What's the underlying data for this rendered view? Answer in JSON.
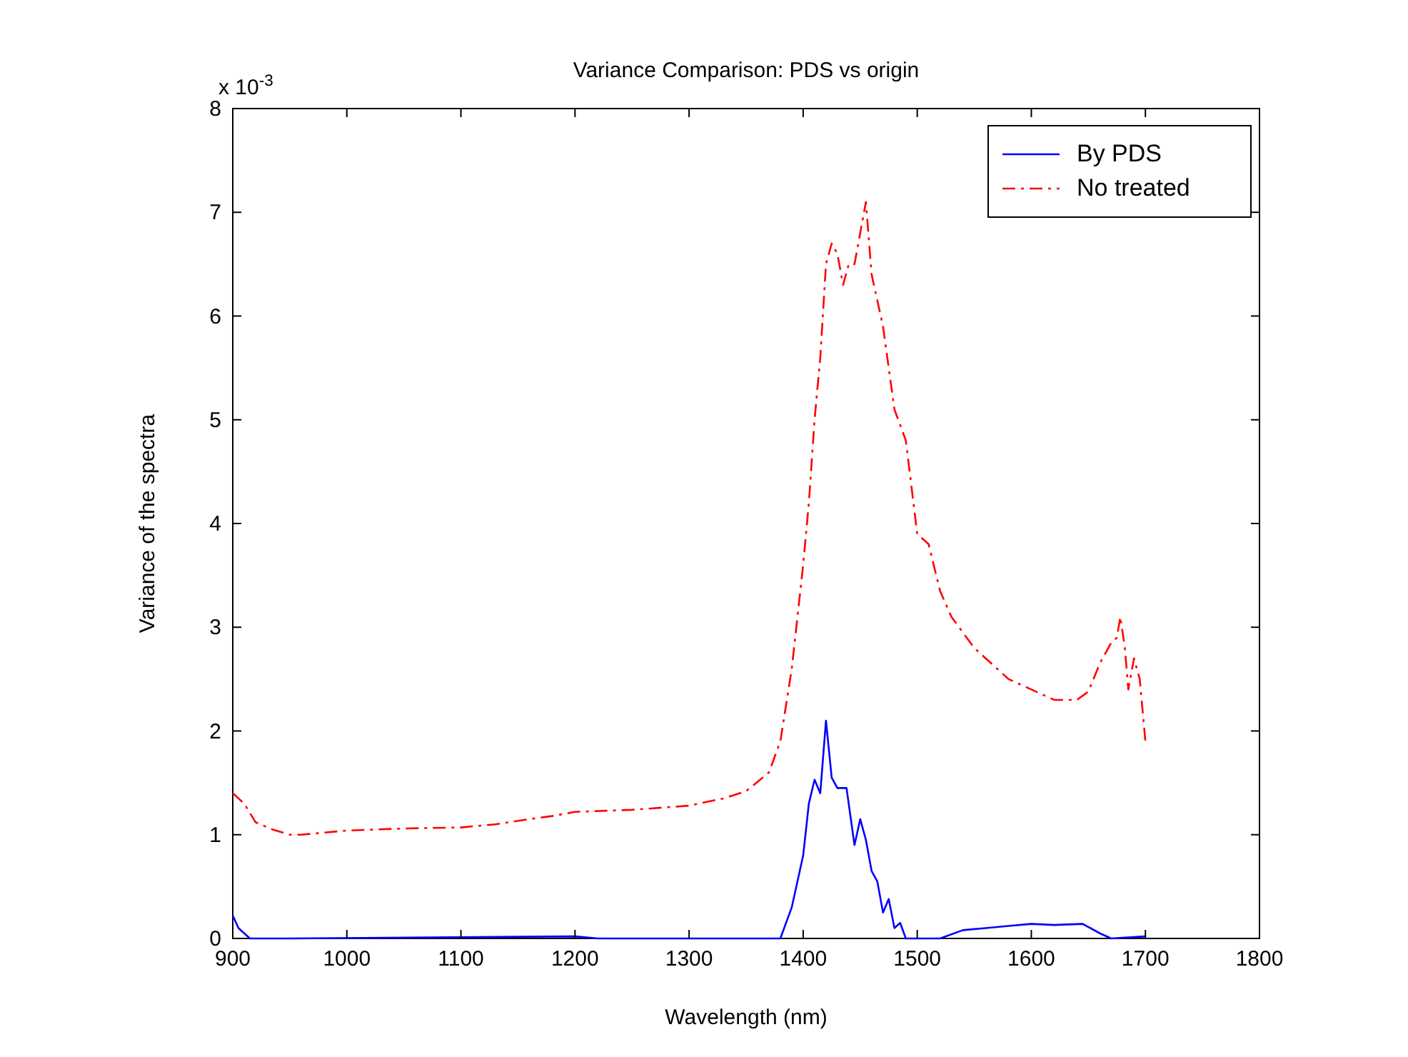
{
  "chart_data": {
    "type": "line",
    "title": "Variance Comparison: PDS vs origin",
    "xlabel": "Wavelength (nm)",
    "ylabel": "Variance of the spectra",
    "annotations": [
      "x 10$^{-3}$"
    ],
    "xlim": [
      900,
      1800
    ],
    "xticks": [
      900,
      1000,
      1100,
      1200,
      1300,
      1400,
      1500,
      1600,
      1700,
      1800
    ],
    "ylim": [
      0,
      8
    ],
    "yticks": [
      0,
      1,
      2,
      3,
      4,
      5,
      6,
      7,
      8
    ],
    "grid": false,
    "legend": "top right",
    "series": [
      {
        "name": "By PDS",
        "color": "#0000ff",
        "line_style": "solid",
        "x": [
          900,
          905,
          915,
          950,
          1200,
          1220,
          1370,
          1380,
          1390,
          1400,
          1405,
          1410,
          1415,
          1420,
          1425,
          1430,
          1438,
          1445,
          1450,
          1455,
          1460,
          1465,
          1470,
          1475,
          1480,
          1485,
          1490,
          1500,
          1520,
          1540,
          1560,
          1580,
          1600,
          1620,
          1645,
          1660,
          1670,
          1700
        ],
        "values": [
          0.22,
          0.1,
          0,
          0,
          0.02,
          0,
          0,
          0,
          0.3,
          0.8,
          1.3,
          1.53,
          1.4,
          2.1,
          1.55,
          1.45,
          1.45,
          0.9,
          1.15,
          0.95,
          0.65,
          0.55,
          0.25,
          0.38,
          0.1,
          0.15,
          0,
          0,
          0,
          0.08,
          0.1,
          0.12,
          0.14,
          0.13,
          0.14,
          0.05,
          0,
          0.02
        ]
      },
      {
        "name": "No treated",
        "color": "#ff0000",
        "line_style": "dashed",
        "x": [
          900,
          910,
          920,
          935,
          950,
          960,
          1000,
          1050,
          1100,
          1130,
          1160,
          1180,
          1200,
          1250,
          1300,
          1330,
          1350,
          1370,
          1380,
          1390,
          1400,
          1405,
          1410,
          1415,
          1420,
          1425,
          1430,
          1435,
          1440,
          1445,
          1450,
          1455,
          1460,
          1470,
          1480,
          1490,
          1500,
          1510,
          1520,
          1530,
          1550,
          1570,
          1580,
          1600,
          1620,
          1640,
          1650,
          1660,
          1670,
          1675,
          1678,
          1682,
          1685,
          1690,
          1695,
          1700
        ],
        "values": [
          1.4,
          1.3,
          1.12,
          1.05,
          1,
          1,
          1.04,
          1.06,
          1.07,
          1.1,
          1.15,
          1.18,
          1.22,
          1.24,
          1.28,
          1.35,
          1.42,
          1.6,
          1.9,
          2.6,
          3.6,
          4.2,
          5,
          5.6,
          6.5,
          6.7,
          6.6,
          6.3,
          6.5,
          6.5,
          6.8,
          7.1,
          6.4,
          5.9,
          5.1,
          4.8,
          3.9,
          3.8,
          3.35,
          3.1,
          2.8,
          2.6,
          2.5,
          2.4,
          2.3,
          2.3,
          2.38,
          2.65,
          2.85,
          2.9,
          3.1,
          2.8,
          2.4,
          2.7,
          2.5,
          1.9
        ]
      }
    ]
  }
}
